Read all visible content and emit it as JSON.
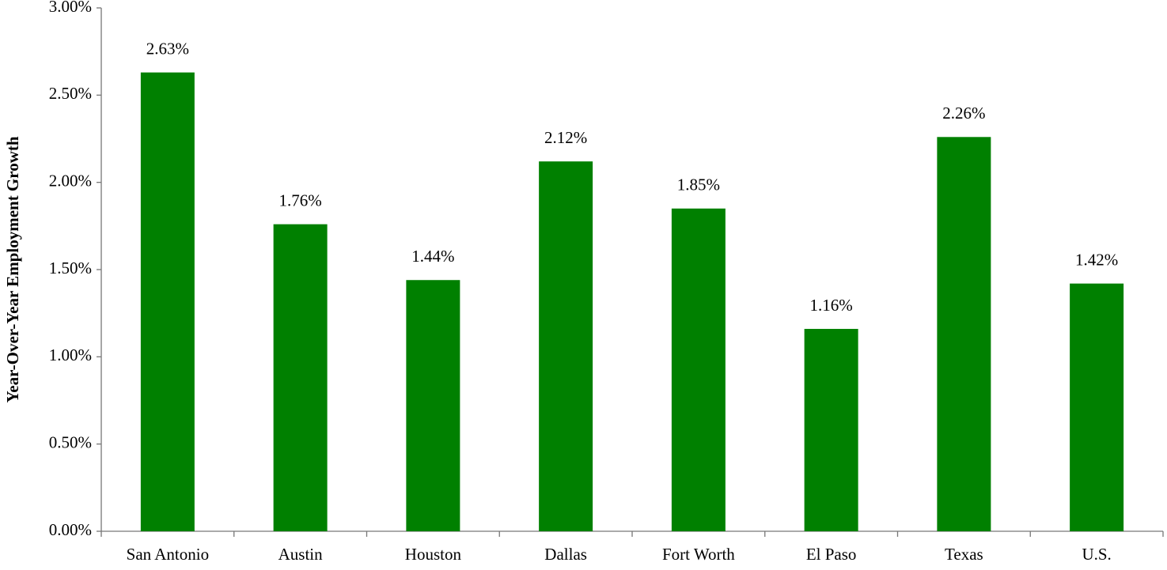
{
  "chart_data": {
    "type": "bar",
    "y_label": "Year-Over-Year Employment Growth",
    "categories": [
      "San Antonio",
      "Austin",
      "Houston",
      "Dallas",
      "Fort Worth",
      "El Paso",
      "Texas",
      "U.S."
    ],
    "values": [
      2.63,
      1.76,
      1.44,
      2.12,
      1.85,
      1.16,
      2.26,
      1.42
    ],
    "value_labels": [
      "2.63%",
      "1.76%",
      "1.44%",
      "2.12%",
      "1.85%",
      "1.16%",
      "2.26%",
      "1.42%"
    ],
    "color": "#008000",
    "ylim": [
      0,
      3
    ],
    "yticks": [
      {
        "value": 0,
        "label": "0.00%"
      },
      {
        "value": 0.5,
        "label": "0.50%"
      },
      {
        "value": 1,
        "label": "1.00%"
      },
      {
        "value": 1.5,
        "label": "1.50%"
      },
      {
        "value": 2,
        "label": "2.00%"
      },
      {
        "value": 2.5,
        "label": "2.50%"
      },
      {
        "value": 3,
        "label": "3.00%"
      }
    ],
    "grid": false
  }
}
